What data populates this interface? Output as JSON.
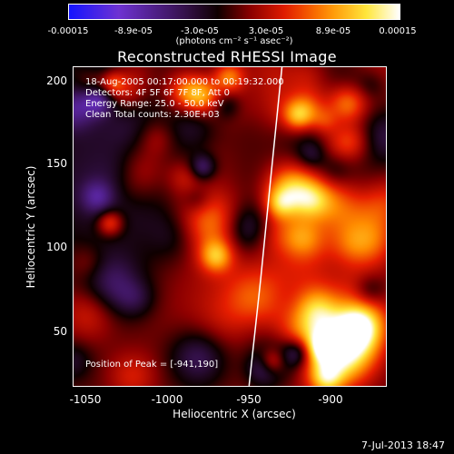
{
  "colorbar": {
    "ticks": [
      "-0.00015",
      "-8.9e-05",
      "-3.0e-05",
      "3.0e-05",
      "8.9e-05",
      "0.00015"
    ],
    "units": "(photons cm⁻² s⁻¹ asec⁻²)"
  },
  "chart_data": {
    "type": "heatmap",
    "title": "Reconstructed RHESSI Image",
    "xlabel": "Heliocentric X (arcsec)",
    "ylabel": "Heliocentric Y (arcsec)",
    "xlim": [
      -1058,
      -868
    ],
    "ylim": [
      16,
      209
    ],
    "xticks": [
      "-1050",
      "-1000",
      "-950",
      "-900"
    ],
    "yticks": [
      "50",
      "100",
      "150",
      "200"
    ],
    "colorscale_range": [
      -0.00015,
      0.00015
    ],
    "annotations": [
      "18-Aug-2005 00:17:00.000 to 00:19:32.000",
      "Detectors: 4F 5F 6F 7F 8F, Att 0",
      "Energy Range: 25.0 - 50.0 keV",
      "Clean    Total counts: 2.30E+03"
    ],
    "peak_label": "Position of Peak = [-941,190]",
    "limb_curve": [
      [
        -951,
        16
      ],
      [
        -944,
        80
      ],
      [
        -938,
        140
      ],
      [
        -931,
        209
      ]
    ]
  },
  "footer": {
    "date": "7-Jul-2013 18:47"
  }
}
